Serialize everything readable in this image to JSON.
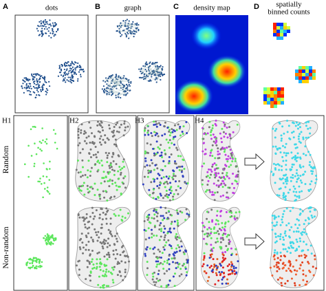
{
  "panels": [
    {
      "letter": "A",
      "title": [
        "dots"
      ]
    },
    {
      "letter": "B",
      "title": [
        "graph"
      ]
    },
    {
      "letter": "C",
      "title": [
        "density map"
      ]
    },
    {
      "letter": "D",
      "title": [
        "spatially",
        "binned counts"
      ]
    }
  ],
  "hypotheses": [
    "H1",
    "H2",
    "H3",
    "H4"
  ],
  "rows": [
    "Random",
    "Non-random"
  ]
}
